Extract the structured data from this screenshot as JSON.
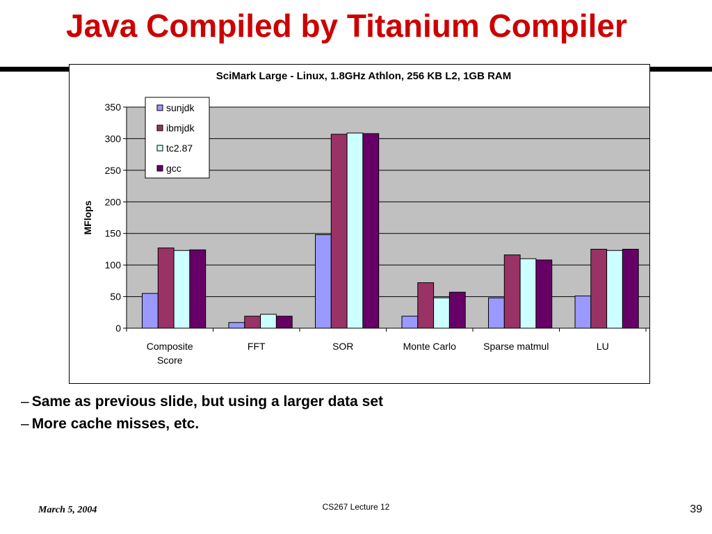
{
  "slide": {
    "title": "Java Compiled by Titanium Compiler",
    "bullets": [
      "Same as previous slide, but using a larger data set",
      "More cache misses, etc."
    ],
    "bullet_marker": "–",
    "footer_date": "March 5, 2004",
    "footer_course": "CS267 Lecture 12",
    "page_number": "39"
  },
  "chart_data": {
    "type": "bar",
    "title": "SciMark Large - Linux, 1.8GHz Athlon, 256 KB L2, 1GB RAM",
    "xlabel": "",
    "ylabel": "MFlops",
    "ylim": [
      0,
      350
    ],
    "yticks": [
      0,
      50,
      100,
      150,
      200,
      250,
      300,
      350
    ],
    "grid": true,
    "legend_position": "top-left",
    "categories": [
      "Composite Score",
      "FFT",
      "SOR",
      "Monte Carlo",
      "Sparse matmul",
      "LU"
    ],
    "category_lines": [
      [
        "Composite",
        "Score"
      ],
      [
        "FFT"
      ],
      [
        "SOR"
      ],
      [
        "Monte Carlo"
      ],
      [
        "Sparse matmul"
      ],
      [
        "LU"
      ]
    ],
    "series": [
      {
        "name": "sunjdk",
        "color": "#9999ff",
        "values": [
          55,
          9,
          148,
          19,
          48,
          51
        ]
      },
      {
        "name": "ibmjdk",
        "color": "#993366",
        "values": [
          127,
          19,
          307,
          72,
          116,
          125
        ]
      },
      {
        "name": "tc2.87",
        "color": "#ccffff",
        "values": [
          123,
          22,
          309,
          48,
          110,
          123
        ]
      },
      {
        "name": "gcc",
        "color": "#660066",
        "values": [
          124,
          19,
          308,
          57,
          108,
          125
        ]
      }
    ],
    "plot_area_color": "#c0c0c0"
  }
}
